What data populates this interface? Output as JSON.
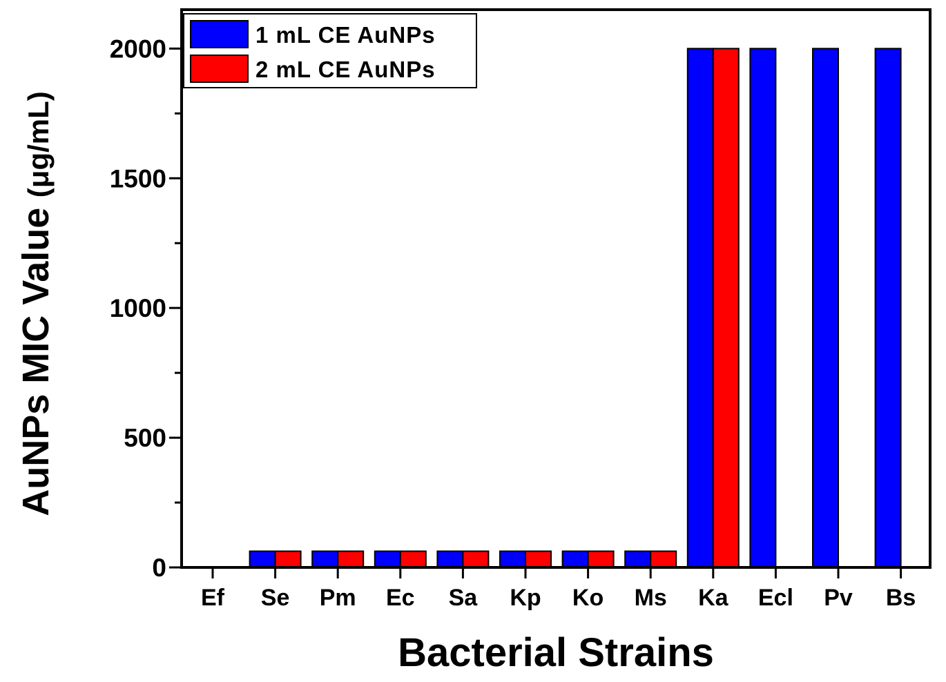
{
  "chart_data": {
    "type": "bar",
    "xlabel": "Bacterial Strains",
    "ylabel": "AuNPs MIC Value",
    "ylabel_unit": "(μg/mL)",
    "ylim": [
      0,
      2150
    ],
    "yticks": [
      0,
      500,
      1000,
      1500,
      2000
    ],
    "yticks_text": [
      "0",
      "500",
      "1000",
      "1500",
      "2000"
    ],
    "grid": false,
    "legend_position": "top-left",
    "categories": [
      "Ef",
      "Se",
      "Pm",
      "Ec",
      "Sa",
      "Kp",
      "Ko",
      "Ms",
      "Ka",
      "Ecl",
      "Pv",
      "Bs"
    ],
    "series": [
      {
        "name": "1 mL CE AuNPs",
        "color": "#0000ff",
        "values": [
          0,
          62.5,
          62.5,
          62.5,
          62.5,
          62.5,
          62.5,
          62.5,
          2000,
          2000,
          2000,
          2000
        ]
      },
      {
        "name": "2 mL CE AuNPs",
        "color": "#ff0000",
        "values": [
          0,
          62.5,
          62.5,
          62.5,
          62.5,
          62.5,
          62.5,
          62.5,
          2000,
          0,
          0,
          0
        ]
      }
    ]
  }
}
